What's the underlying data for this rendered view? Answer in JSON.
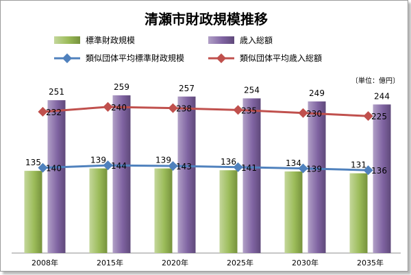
{
  "chart_data": {
    "type": "bar",
    "title": "清瀬市財政規模推移",
    "unit_note": "〔単位：億円〕",
    "categories": [
      "2008年",
      "2015年",
      "2020年",
      "2025年",
      "2030年",
      "2035年"
    ],
    "ylim": [
      0,
      300
    ],
    "legend_placement": "top",
    "grid": false,
    "series": [
      {
        "name": "標準財政規模",
        "type": "bar",
        "color": "#9bbb59",
        "values": [
          135,
          139,
          139,
          136,
          134,
          131
        ]
      },
      {
        "name": "歳入総額",
        "type": "bar",
        "color": "#8064a2",
        "values": [
          251,
          259,
          257,
          254,
          249,
          244
        ]
      },
      {
        "name": "類似団体平均標準財政規模",
        "type": "line",
        "color": "#4f81bd",
        "values": [
          140,
          144,
          143,
          141,
          139,
          136
        ]
      },
      {
        "name": "類似団体平均歳入総額",
        "type": "line",
        "color": "#c0504d",
        "values": [
          232,
          240,
          238,
          235,
          230,
          225
        ]
      }
    ]
  }
}
